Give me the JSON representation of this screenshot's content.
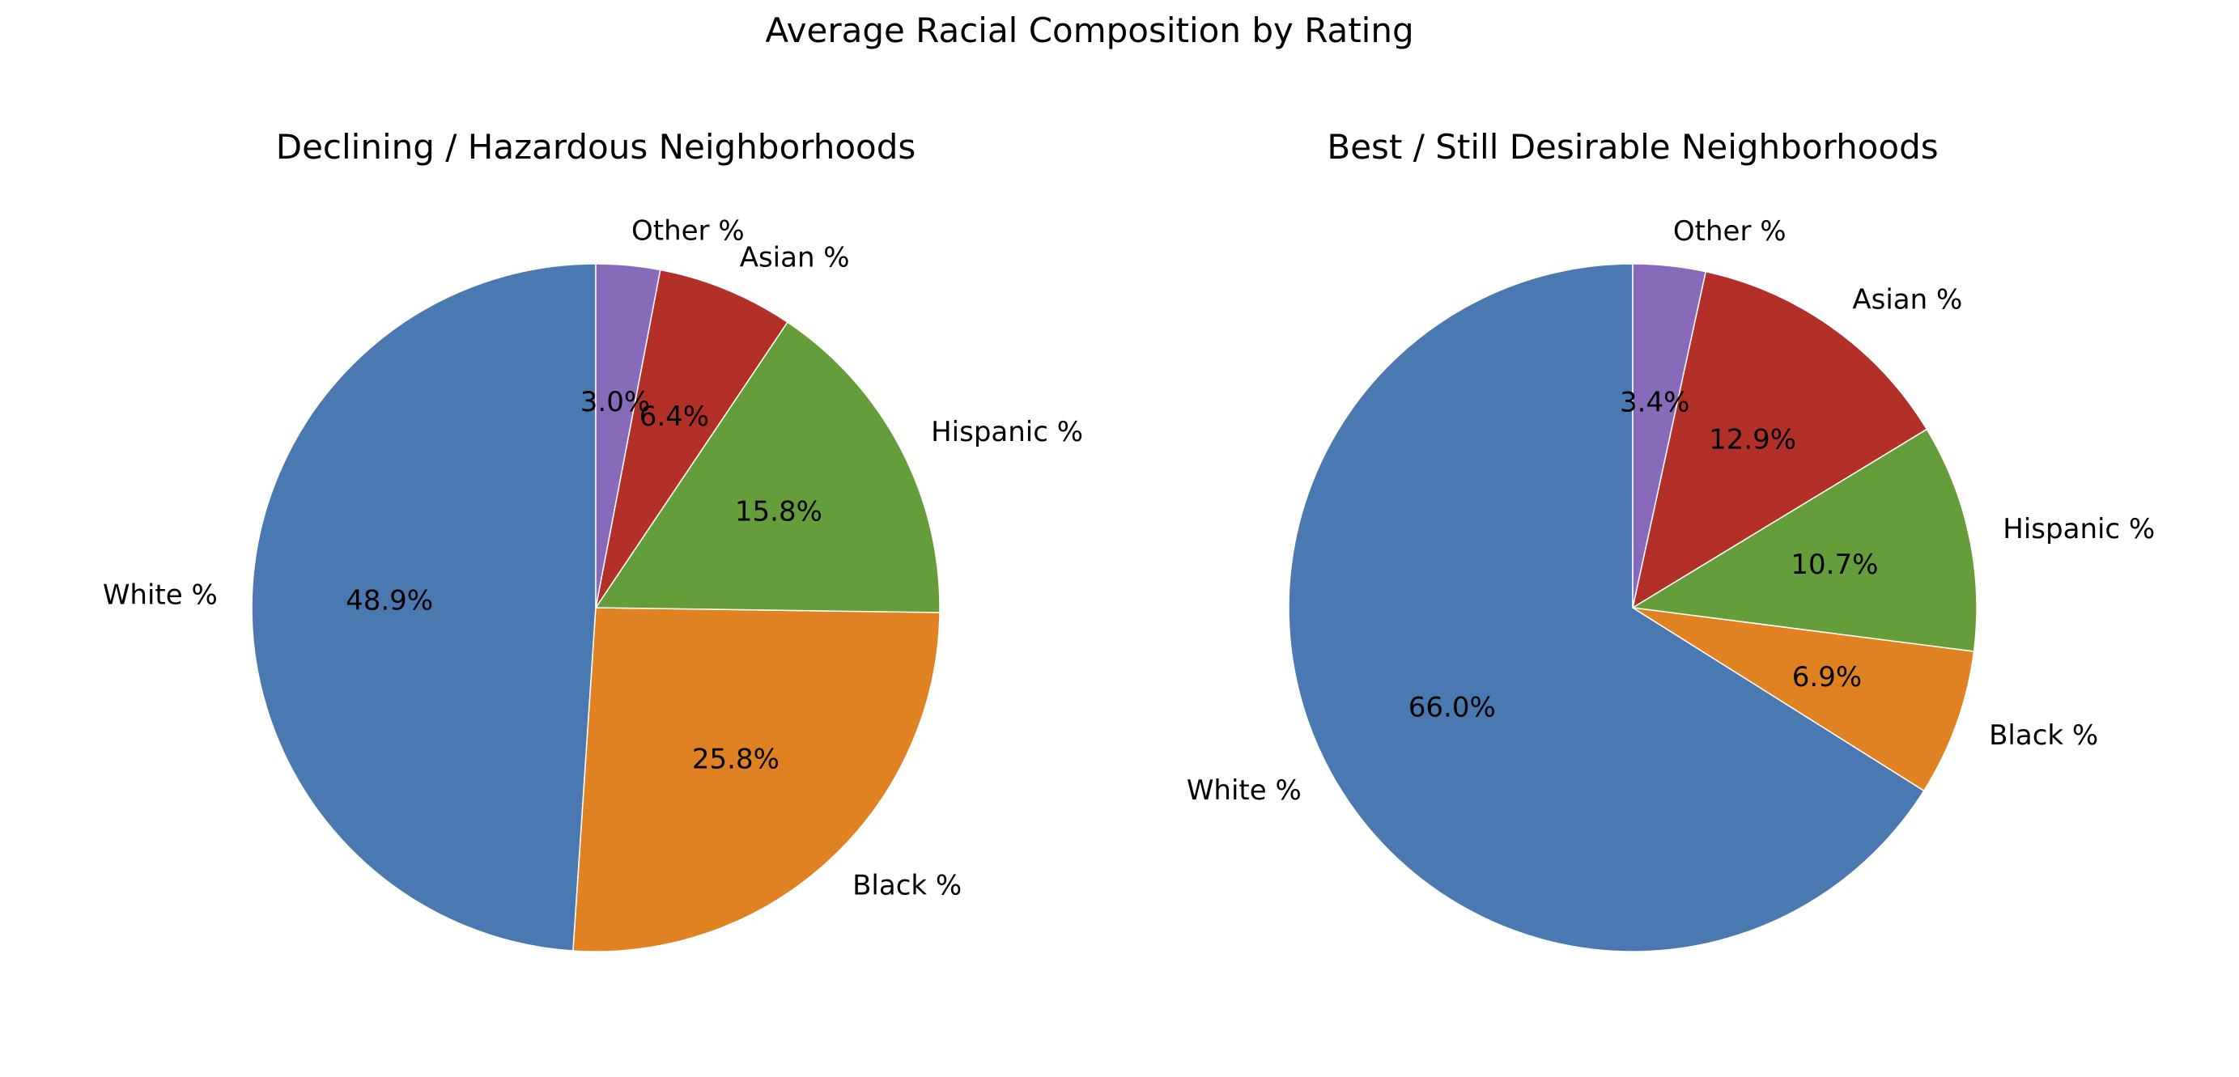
{
  "figure": {
    "suptitle": "Average Racial Composition by Rating"
  },
  "colors": {
    "White %": "#4a78b0",
    "Black %": "#e08122",
    "Hispanic %": "#659d3a",
    "Asian %": "#b23028",
    "Other %": "#876bba"
  },
  "chart_data": [
    {
      "type": "pie",
      "title": "Declining / Hazardous Neighborhoods",
      "start_angle_deg": 90,
      "direction": "counterclockwise",
      "slices": [
        {
          "label": "White %",
          "value": 48.9,
          "pct_label": "48.9%"
        },
        {
          "label": "Black %",
          "value": 25.8,
          "pct_label": "25.8%"
        },
        {
          "label": "Hispanic %",
          "value": 15.8,
          "pct_label": "15.8%"
        },
        {
          "label": "Asian %",
          "value": 6.4,
          "pct_label": "6.4%"
        },
        {
          "label": "Other %",
          "value": 3.0,
          "pct_label": "3.0%"
        }
      ]
    },
    {
      "type": "pie",
      "title": "Best / Still Desirable Neighborhoods",
      "start_angle_deg": 90,
      "direction": "counterclockwise",
      "slices": [
        {
          "label": "White %",
          "value": 66.0,
          "pct_label": "66.0%"
        },
        {
          "label": "Black %",
          "value": 6.9,
          "pct_label": "6.9%"
        },
        {
          "label": "Hispanic %",
          "value": 10.7,
          "pct_label": "10.7%"
        },
        {
          "label": "Asian %",
          "value": 12.9,
          "pct_label": "12.9%"
        },
        {
          "label": "Other %",
          "value": 3.4,
          "pct_label": "3.4%"
        }
      ]
    }
  ]
}
